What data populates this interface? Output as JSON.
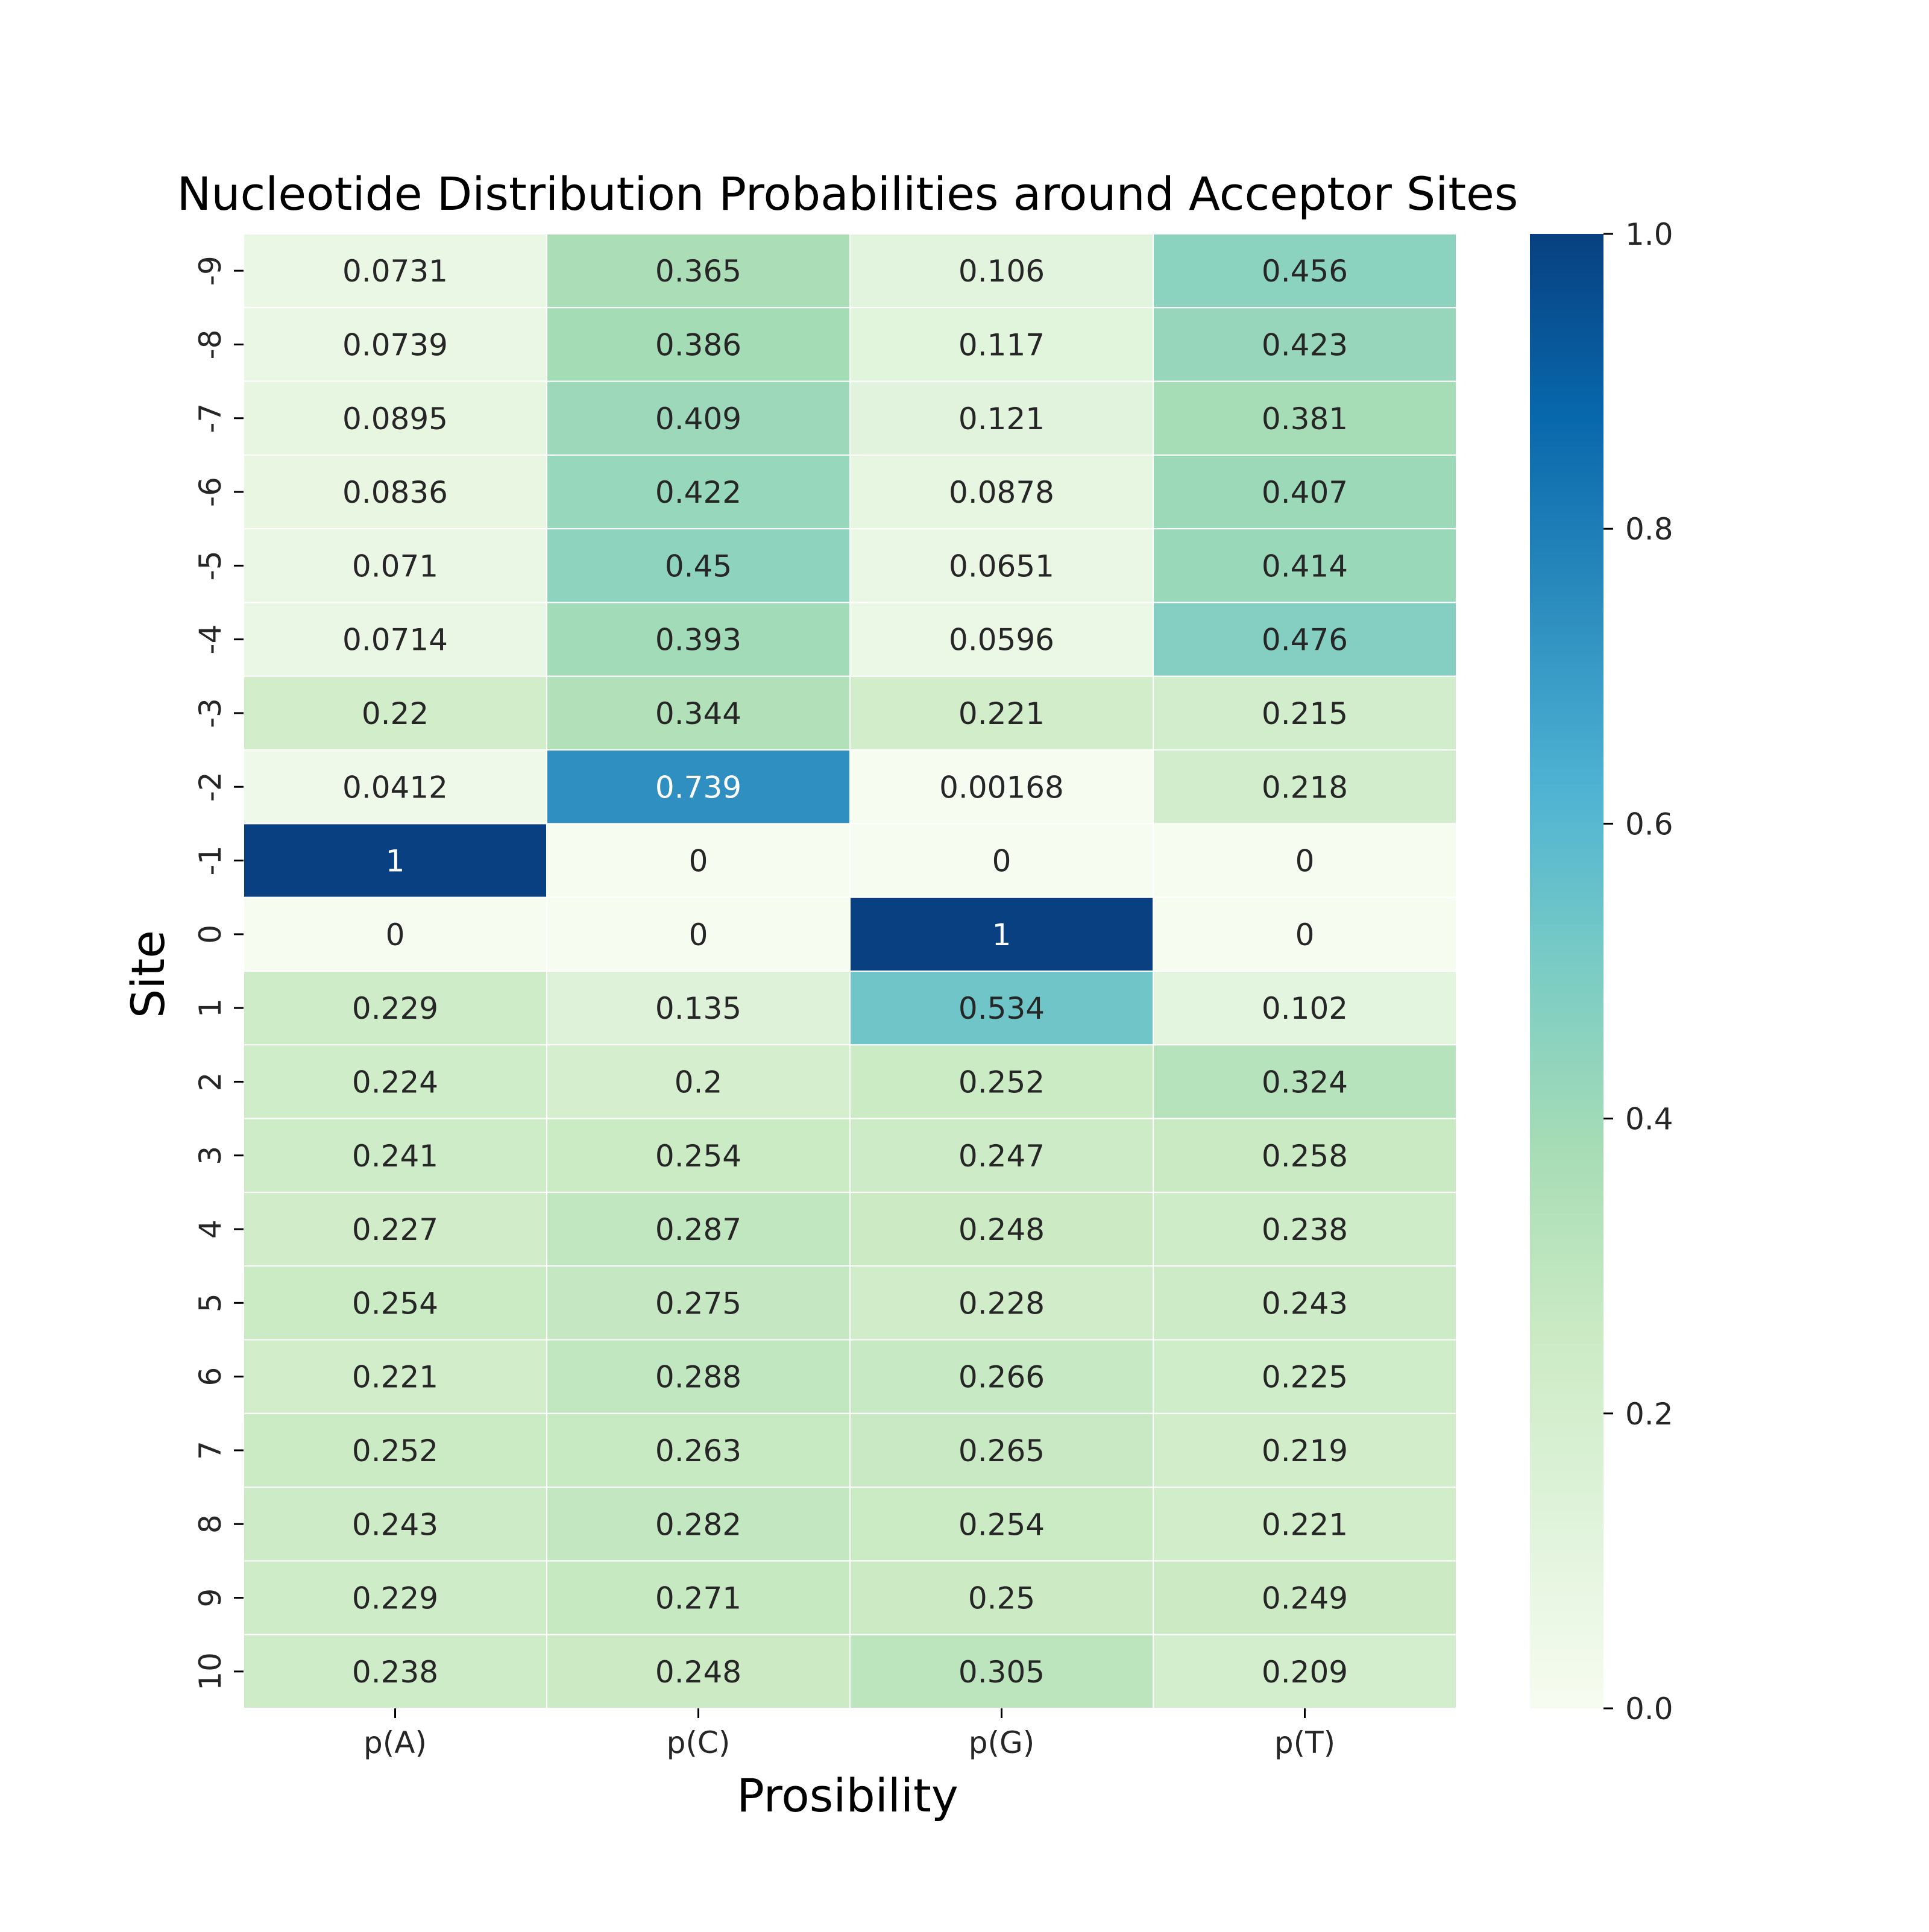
{
  "chart_data": {
    "type": "heatmap",
    "title": "Nucleotide Distribution Probabilities around Acceptor Sites",
    "xlabel": "Prosibility",
    "ylabel": "Site",
    "columns": [
      "p(A)",
      "p(C)",
      "p(G)",
      "p(T)"
    ],
    "rows": [
      "-9",
      "-8",
      "-7",
      "-6",
      "-5",
      "-4",
      "-3",
      "-2",
      "-1",
      "0",
      "1",
      "2",
      "3",
      "4",
      "5",
      "6",
      "7",
      "8",
      "9",
      "10"
    ],
    "values": [
      [
        "0.0731",
        "0.365",
        "0.106",
        "0.456"
      ],
      [
        "0.0739",
        "0.386",
        "0.117",
        "0.423"
      ],
      [
        "0.0895",
        "0.409",
        "0.121",
        "0.381"
      ],
      [
        "0.0836",
        "0.422",
        "0.0878",
        "0.407"
      ],
      [
        "0.071",
        "0.45",
        "0.0651",
        "0.414"
      ],
      [
        "0.0714",
        "0.393",
        "0.0596",
        "0.476"
      ],
      [
        "0.22",
        "0.344",
        "0.221",
        "0.215"
      ],
      [
        "0.0412",
        "0.739",
        "0.00168",
        "0.218"
      ],
      [
        "1",
        "0",
        "0",
        "0"
      ],
      [
        "0",
        "0",
        "1",
        "0"
      ],
      [
        "0.229",
        "0.135",
        "0.534",
        "0.102"
      ],
      [
        "0.224",
        "0.2",
        "0.252",
        "0.324"
      ],
      [
        "0.241",
        "0.254",
        "0.247",
        "0.258"
      ],
      [
        "0.227",
        "0.287",
        "0.248",
        "0.238"
      ],
      [
        "0.254",
        "0.275",
        "0.228",
        "0.243"
      ],
      [
        "0.221",
        "0.288",
        "0.266",
        "0.225"
      ],
      [
        "0.252",
        "0.263",
        "0.265",
        "0.219"
      ],
      [
        "0.243",
        "0.282",
        "0.254",
        "0.221"
      ],
      [
        "0.229",
        "0.271",
        "0.25",
        "0.249"
      ],
      [
        "0.238",
        "0.248",
        "0.305",
        "0.209"
      ]
    ],
    "colorscale": "GnBu",
    "colorbar": {
      "range": [
        0,
        1
      ],
      "ticks": [
        "0.0",
        "0.2",
        "0.4",
        "0.6",
        "0.8",
        "1.0"
      ],
      "tick_values": [
        0,
        0.2,
        0.4,
        0.6,
        0.8,
        1.0
      ]
    },
    "colormap_stops": [
      {
        "v": 0.0,
        "color": "#f7fcf0"
      },
      {
        "v": 0.125,
        "color": "#e0f3db"
      },
      {
        "v": 0.25,
        "color": "#ccebc5"
      },
      {
        "v": 0.375,
        "color": "#a8ddb5"
      },
      {
        "v": 0.5,
        "color": "#7bccc4"
      },
      {
        "v": 0.625,
        "color": "#4eb3d3"
      },
      {
        "v": 0.75,
        "color": "#2b8cbe"
      },
      {
        "v": 0.875,
        "color": "#0868ac"
      },
      {
        "v": 1.0,
        "color": "#084081"
      }
    ],
    "annotation_colors": {
      "dark_text": "#262626",
      "light_text": "#ffffff"
    },
    "cell_border_color": "#ffffff",
    "legend": "colorbar-right"
  }
}
